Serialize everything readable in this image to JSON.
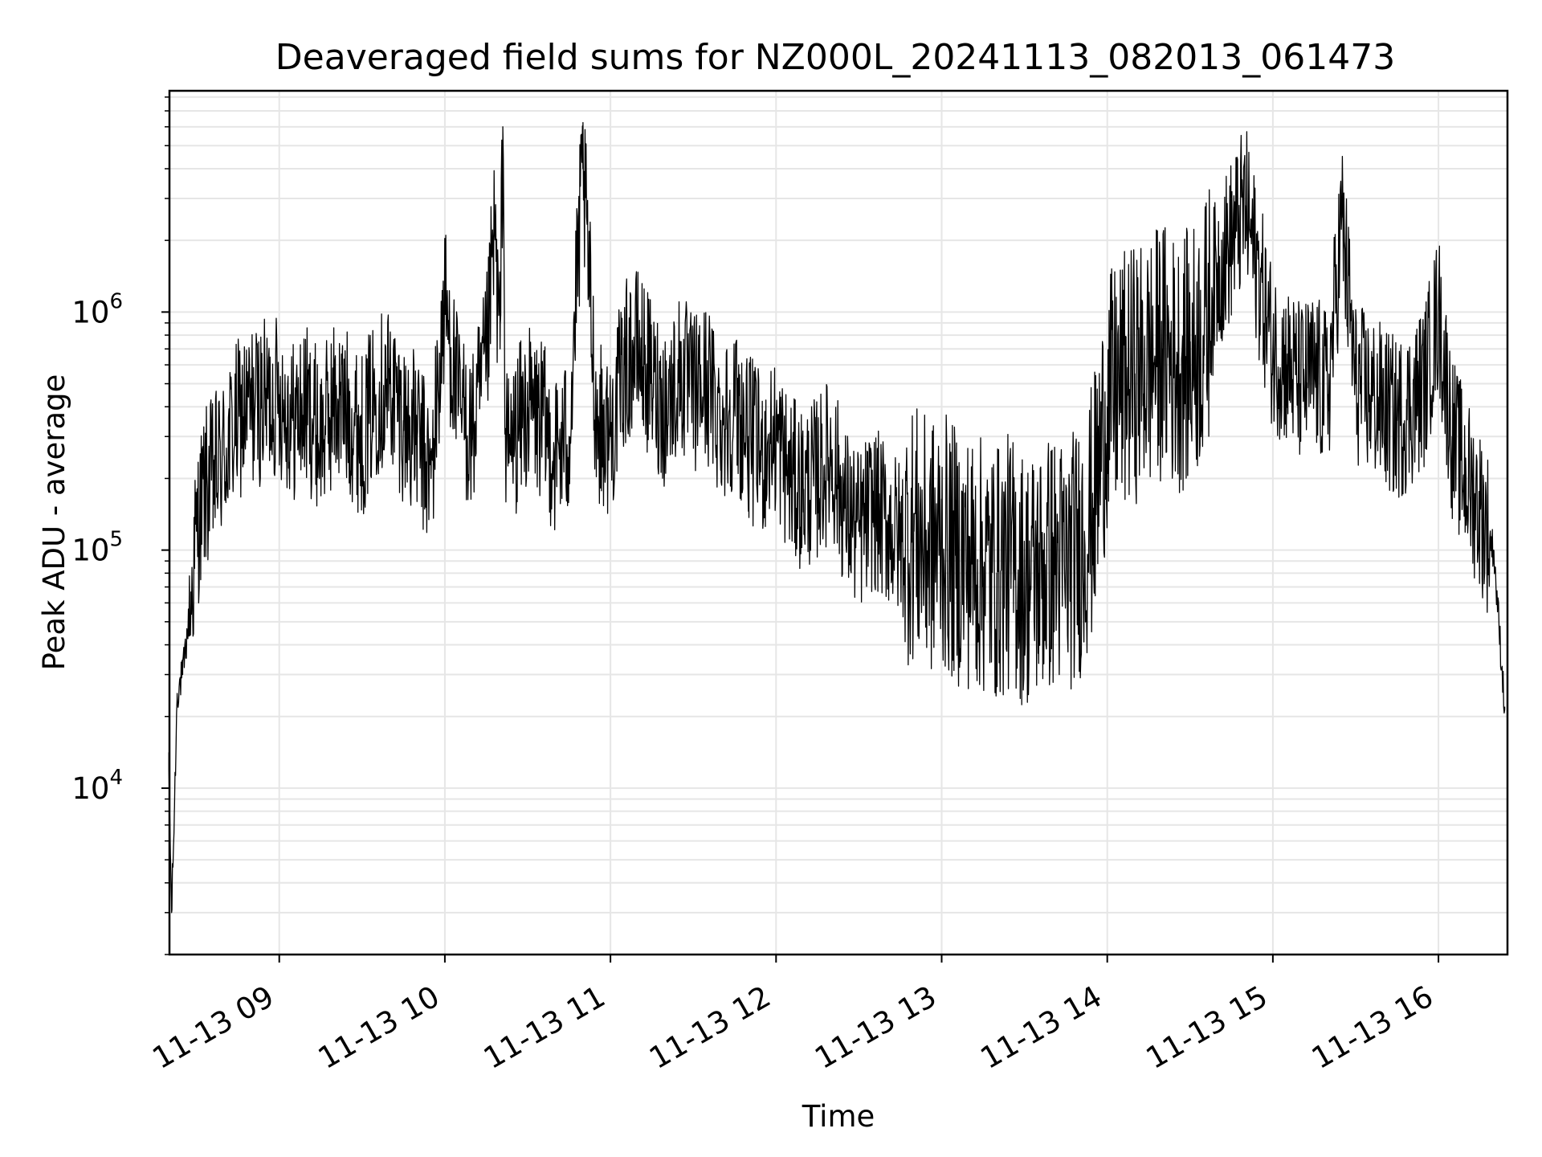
{
  "chart_data": {
    "type": "line",
    "title": "Deaveraged field sums for NZ000L_20241113_082013_061473",
    "xlabel": "Time",
    "ylabel": "Peak ADU - average",
    "y_scale": "log",
    "ylim": [
      2000,
      8500000
    ],
    "xlim": [
      "2024-11-13T08:20:13",
      "2024-11-13T16:25:00"
    ],
    "grid": true,
    "grid_color": "#e6e6e6",
    "line_color": "#000000",
    "legend": "none",
    "x_ticks": [
      "11-13 09",
      "11-13 10",
      "11-13 11",
      "11-13 12",
      "11-13 13",
      "11-13 14",
      "11-13 15",
      "11-13 16"
    ],
    "x_tick_times": [
      "2024-11-13T09:00",
      "2024-11-13T10:00",
      "2024-11-13T11:00",
      "2024-11-13T12:00",
      "2024-11-13T13:00",
      "2024-11-13T14:00",
      "2024-11-13T15:00",
      "2024-11-13T16:00"
    ],
    "y_ticks": [
      {
        "value": 10000,
        "base": "10",
        "exp": "4"
      },
      {
        "value": 100000,
        "base": "10",
        "exp": "5"
      },
      {
        "value": 1000000,
        "base": "10",
        "exp": "6"
      }
    ],
    "series": [
      {
        "x": [
          "08:20",
          "08:21",
          "08:22",
          "08:23",
          "08:25",
          "08:28",
          "08:30",
          "08:33",
          "08:36",
          "08:40",
          "08:45",
          "08:50",
          "08:55",
          "09:00",
          "09:05",
          "09:10",
          "09:15",
          "09:20",
          "09:25",
          "09:30",
          "09:35",
          "09:40",
          "09:45",
          "09:50",
          "09:55",
          "10:00",
          "10:05",
          "10:10",
          "10:15",
          "10:18",
          "10:20",
          "10:21",
          "10:22",
          "10:25",
          "10:30",
          "10:35",
          "10:40",
          "10:45",
          "10:50",
          "10:55",
          "11:00",
          "11:05",
          "11:10",
          "11:15",
          "11:20",
          "11:25",
          "11:30",
          "11:35",
          "11:40",
          "11:45",
          "11:50",
          "11:55",
          "12:00",
          "12:05",
          "12:10",
          "12:15",
          "12:20",
          "12:25",
          "12:30",
          "12:35",
          "12:40",
          "12:45",
          "12:50",
          "12:55",
          "13:00",
          "13:05",
          "13:10",
          "13:15",
          "13:20",
          "13:25",
          "13:30",
          "13:35",
          "13:40",
          "13:45",
          "13:50",
          "13:55",
          "14:00",
          "14:05",
          "14:10",
          "14:15",
          "14:20",
          "14:25",
          "14:30",
          "14:35",
          "14:40",
          "14:45",
          "14:50",
          "14:55",
          "15:00",
          "15:05",
          "15:10",
          "15:15",
          "15:20",
          "15:25",
          "15:30",
          "15:35",
          "15:40",
          "15:45",
          "15:50",
          "15:55",
          "16:00",
          "16:05",
          "16:10",
          "16:15",
          "16:20",
          "16:24"
        ],
        "y": [
          12000,
          3000,
          8000,
          25000,
          30000,
          60000,
          120000,
          180000,
          200000,
          250000,
          350000,
          400000,
          420000,
          450000,
          350000,
          400000,
          300000,
          420000,
          380000,
          300000,
          450000,
          500000,
          350000,
          300000,
          200000,
          1100000,
          400000,
          300000,
          600000,
          2200000,
          700000,
          6000000,
          250000,
          300000,
          400000,
          350000,
          250000,
          300000,
          4000000,
          350000,
          300000,
          600000,
          700000,
          500000,
          400000,
          550000,
          450000,
          500000,
          350000,
          400000,
          300000,
          250000,
          300000,
          200000,
          180000,
          200000,
          250000,
          150000,
          120000,
          150000,
          130000,
          110000,
          120000,
          100000,
          110000,
          95000,
          90000,
          85000,
          80000,
          90000,
          75000,
          80000,
          90000,
          85000,
          100000,
          150000,
          400000,
          500000,
          550000,
          600000,
          700000,
          600000,
          650000,
          800000,
          1500000,
          2000000,
          2800000,
          1400000,
          700000,
          600000,
          500000,
          550000,
          450000,
          2500000,
          500000,
          450000,
          400000,
          350000,
          400000,
          500000,
          1000000,
          300000,
          200000,
          150000,
          100000,
          22000
        ]
      }
    ]
  }
}
